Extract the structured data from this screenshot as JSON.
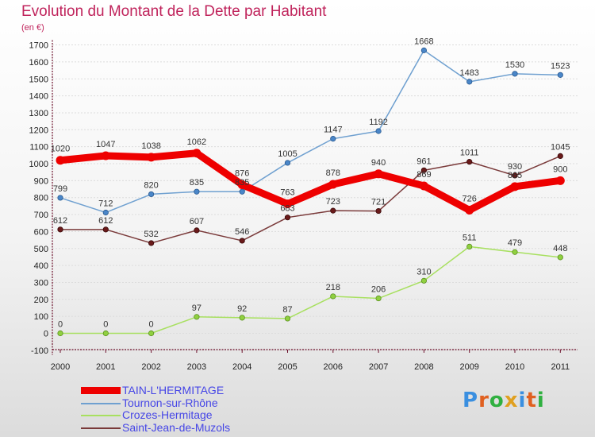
{
  "title": "Evolution du Montant de la Dette par Habitant",
  "unit_label": "(en €)",
  "logo_text": "Proxiti",
  "chart_data": {
    "type": "line",
    "title": "Evolution du Montant de la Dette par Habitant",
    "subtitle": "(en €)",
    "xlabel": "",
    "ylabel": "",
    "categories": [
      "2000",
      "2001",
      "2002",
      "2003",
      "2004",
      "2005",
      "2006",
      "2007",
      "2008",
      "2009",
      "2010",
      "2011"
    ],
    "ylim": [
      -100,
      1700
    ],
    "yticks": [
      -100,
      0,
      100,
      200,
      300,
      400,
      500,
      600,
      700,
      800,
      900,
      1000,
      1100,
      1200,
      1300,
      1400,
      1500,
      1600,
      1700
    ],
    "grid": true,
    "legend_position": "bottom-left",
    "series": [
      {
        "name": "TAIN-L'HERMITAGE",
        "color": "#ee0000",
        "values": [
          1020,
          1047,
          1038,
          1062,
          876,
          763,
          878,
          940,
          869,
          726,
          865,
          900
        ],
        "labels": [
          "1020",
          "1047",
          "1038",
          "1062",
          "876",
          "763",
          "878",
          "940",
          "869",
          "726",
          "865",
          "900"
        ]
      },
      {
        "name": "Tournon-sur-Rhône",
        "color": "#6fa0d0",
        "values": [
          799,
          712,
          820,
          835,
          835,
          1005,
          1147,
          1192,
          1668,
          1483,
          1530,
          1523
        ],
        "labels": [
          "799",
          "712",
          "820",
          "835",
          "835",
          "1005",
          "1147",
          "1192",
          "1668",
          "1483",
          "1530",
          "1523"
        ]
      },
      {
        "name": "Crozes-Hermitage",
        "color": "#a8e060",
        "values": [
          0,
          0,
          0,
          97,
          92,
          87,
          218,
          206,
          310,
          511,
          479,
          448
        ],
        "labels": [
          "0",
          "0",
          "0",
          "97",
          "92",
          "87",
          "218",
          "206",
          "310",
          "511",
          "479",
          "448"
        ]
      },
      {
        "name": "Saint-Jean-de-Muzols",
        "color": "#7a3a3a",
        "values": [
          612,
          612,
          532,
          607,
          546,
          683,
          723,
          721,
          961,
          1011,
          930,
          1045
        ],
        "labels": [
          "612",
          "612",
          "532",
          "607",
          "546",
          "683",
          "723",
          "721",
          "961",
          "1011",
          "930",
          "1045"
        ]
      }
    ]
  }
}
